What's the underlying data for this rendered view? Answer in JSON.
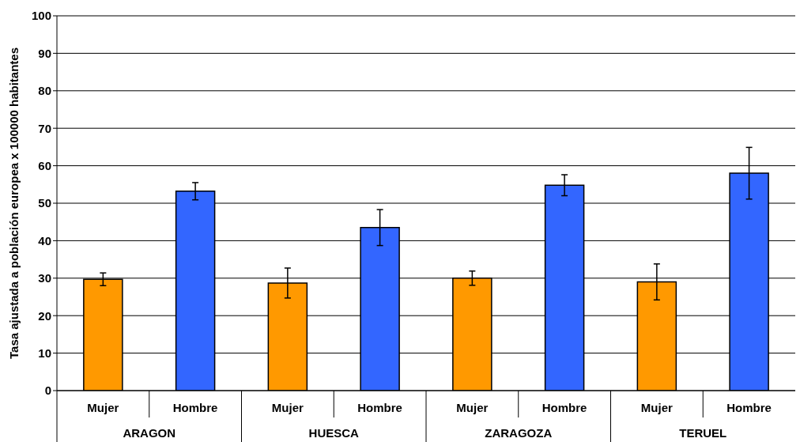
{
  "chart_data": {
    "type": "bar",
    "ylabel": "Tasa ajustada a población europea x 100000 habitantes",
    "categories": [
      "Mujer",
      "Hombre",
      "Mujer",
      "Hombre",
      "Mujer",
      "Hombre",
      "Mujer",
      "Hombre"
    ],
    "values": [
      29.7,
      53.2,
      28.7,
      43.5,
      30.0,
      54.8,
      29.0,
      58.0
    ],
    "errors": [
      1.7,
      2.3,
      4.0,
      4.8,
      1.9,
      2.8,
      4.8,
      6.9
    ],
    "colors": [
      "#ff9900",
      "#3366ff",
      "#ff9900",
      "#3366ff",
      "#ff9900",
      "#3366ff",
      "#ff9900",
      "#3366ff"
    ],
    "ylim": [
      0,
      100
    ],
    "yticks": [
      0,
      10,
      20,
      30,
      40,
      50,
      60,
      70,
      80,
      90,
      100
    ],
    "grid": "y",
    "annotations": [
      "ARAGON",
      "HUESCA",
      "ZARAGOZA",
      "TERUEL"
    ]
  }
}
